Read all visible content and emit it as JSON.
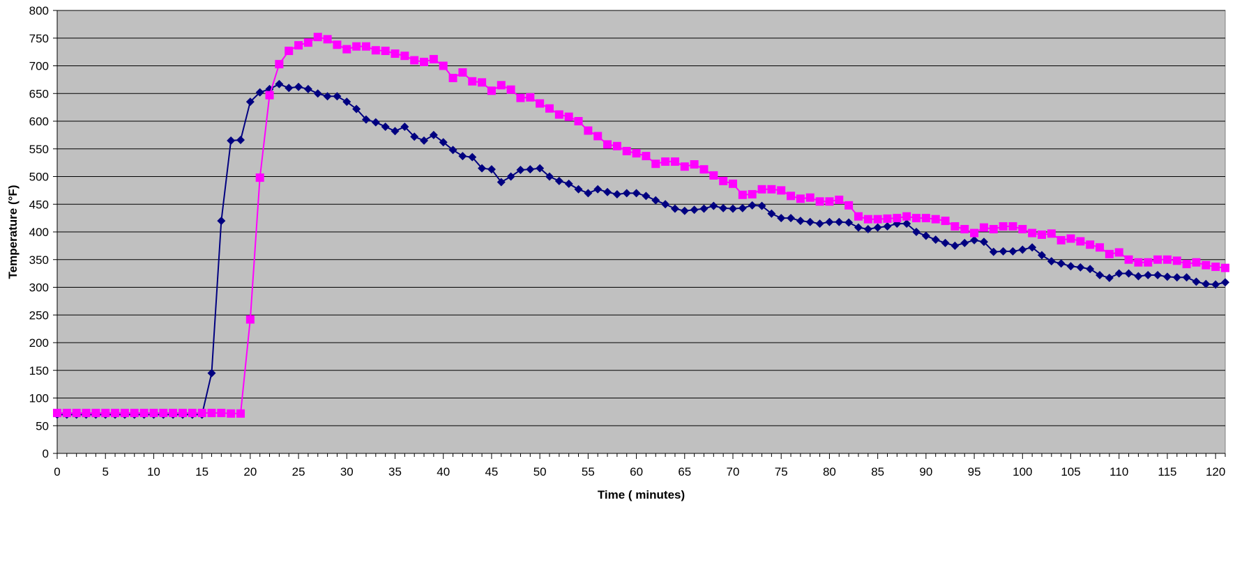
{
  "chart_data": {
    "type": "line",
    "title": "",
    "xlabel": "Time ( minutes)",
    "ylabel": "Temperature (°F)",
    "xlim": [
      0,
      121
    ],
    "ylim": [
      0,
      800
    ],
    "x_ticks": [
      0,
      5,
      10,
      15,
      20,
      25,
      30,
      35,
      40,
      45,
      50,
      55,
      60,
      65,
      70,
      75,
      80,
      85,
      90,
      95,
      100,
      105,
      110,
      115,
      120
    ],
    "y_ticks": [
      0,
      50,
      100,
      150,
      200,
      250,
      300,
      350,
      400,
      450,
      500,
      550,
      600,
      650,
      700,
      750,
      800
    ],
    "grid": "horizontal",
    "background_color": "#C0C0C0",
    "legend": "none",
    "series": [
      {
        "color": "#000080",
        "marker": "diamond",
        "x_start": 0,
        "x_step": 1,
        "values": [
          70,
          70,
          70,
          70,
          70,
          70,
          70,
          70,
          70,
          70,
          70,
          70,
          70,
          70,
          70,
          70,
          145,
          420,
          565,
          566,
          635,
          652,
          658,
          667,
          660,
          662,
          658,
          650,
          645,
          645,
          635,
          622,
          603,
          598,
          590,
          582,
          590,
          572,
          565,
          575,
          562,
          548,
          537,
          535,
          515,
          513,
          490,
          500,
          512,
          513,
          515,
          500,
          492,
          487,
          477,
          470,
          477,
          472,
          468,
          470,
          470,
          465,
          457,
          450,
          442,
          438,
          440,
          442,
          447,
          443,
          442,
          443,
          448,
          447,
          433,
          425,
          425,
          420,
          418,
          415,
          418,
          418,
          417,
          408,
          405,
          408,
          410,
          415,
          415,
          400,
          393,
          386,
          380,
          375,
          380,
          385,
          382,
          364,
          365,
          365,
          368,
          372,
          358,
          347,
          343,
          338,
          336,
          333,
          322,
          317,
          325,
          325,
          320,
          322,
          322,
          319,
          318,
          318,
          310,
          306,
          305,
          309
        ]
      },
      {
        "color": "#FF00FF",
        "marker": "square",
        "x_start": 0,
        "x_step": 1,
        "values": [
          73,
          73,
          73,
          73,
          73,
          73,
          73,
          73,
          73,
          73,
          73,
          73,
          73,
          73,
          73,
          73,
          73,
          73,
          72,
          72,
          242,
          498,
          647,
          703,
          727,
          737,
          742,
          752,
          748,
          738,
          730,
          735,
          735,
          728,
          727,
          722,
          718,
          710,
          707,
          712,
          700,
          678,
          688,
          672,
          670,
          655,
          665,
          657,
          642,
          643,
          632,
          623,
          612,
          608,
          600,
          583,
          573,
          558,
          555,
          546,
          542,
          537,
          523,
          527,
          527,
          518,
          522,
          513,
          502,
          492,
          487,
          467,
          468,
          477,
          477,
          475,
          465,
          460,
          462,
          455,
          455,
          458,
          448,
          428,
          423,
          423,
          424,
          425,
          428,
          425,
          425,
          423,
          420,
          410,
          405,
          398,
          408,
          405,
          410,
          410,
          405,
          398,
          395,
          397,
          385,
          388,
          383,
          377,
          372,
          360,
          363,
          350,
          345,
          345,
          350,
          350,
          348,
          342,
          345,
          340,
          337,
          335
        ]
      }
    ]
  }
}
